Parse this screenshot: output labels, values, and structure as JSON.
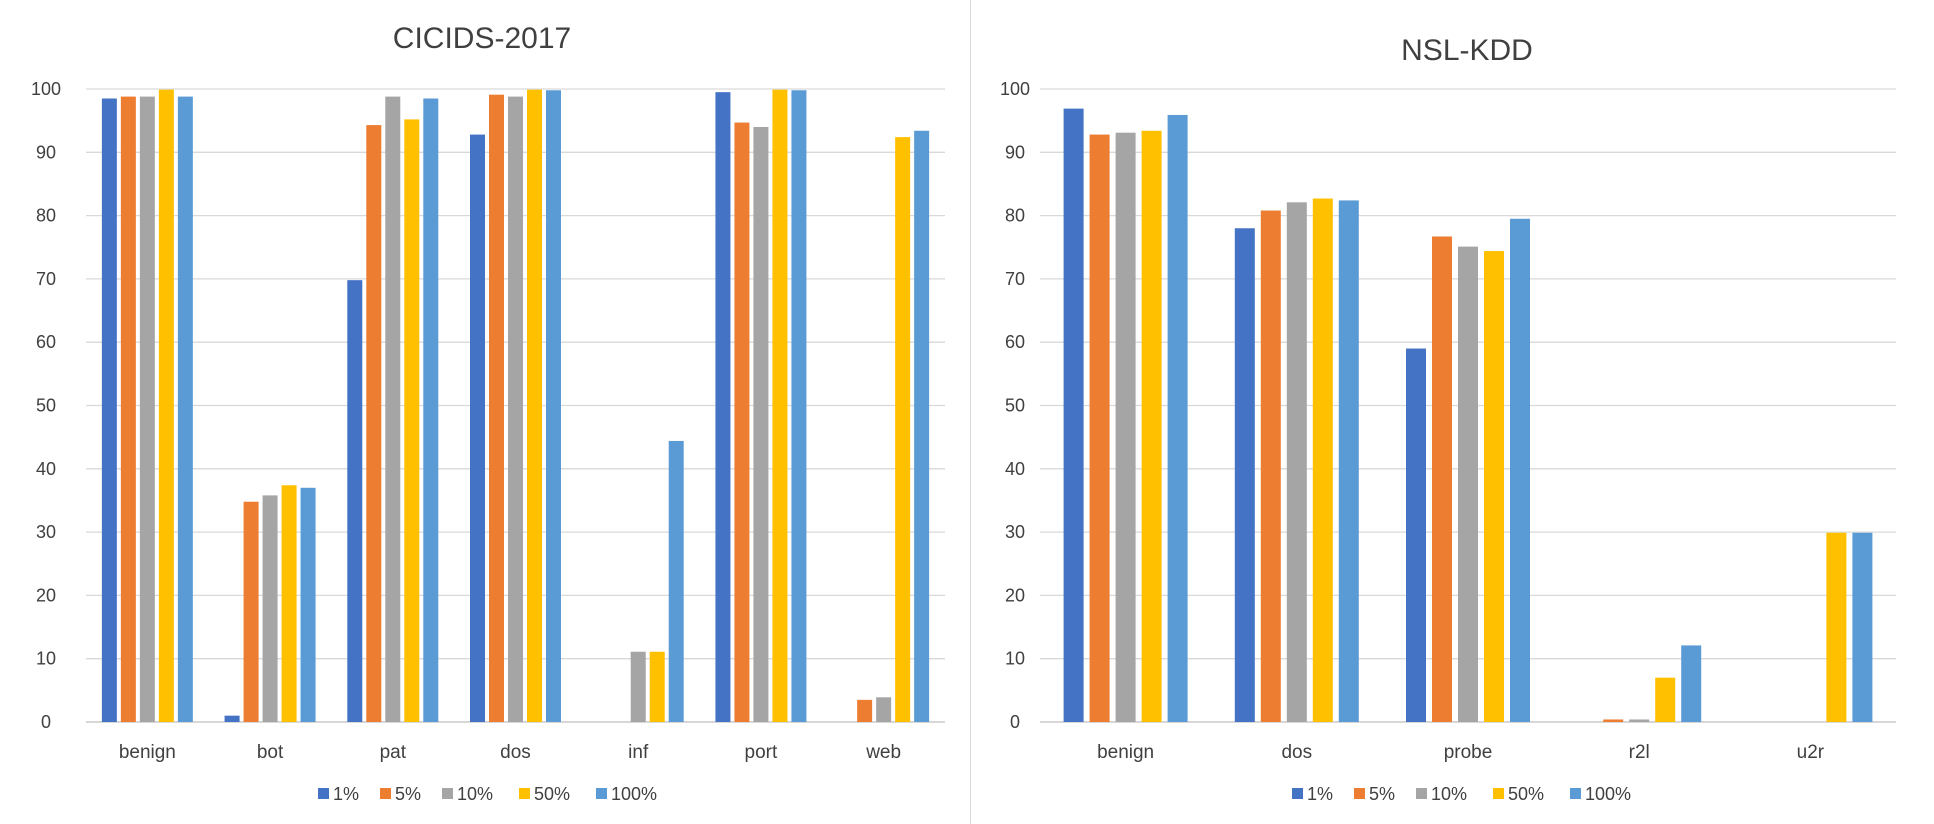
{
  "series_colors": [
    "#4472C4",
    "#ED7D31",
    "#A5A5A5",
    "#FFC000",
    "#5B9BD5"
  ],
  "chart_data": [
    {
      "type": "bar",
      "title": "CICIDS-2017",
      "xlabel": "",
      "ylabel": "",
      "ylim": [
        0,
        100
      ],
      "yticks": [
        "0",
        "10",
        "20",
        "30",
        "40",
        "50",
        "60",
        "70",
        "80",
        "90",
        "100"
      ],
      "grid": true,
      "legend_position": "bottom",
      "categories": [
        "benign",
        "bot",
        "pat",
        "dos",
        "inf",
        "port",
        "web"
      ],
      "series": [
        {
          "name": "1%",
          "values": [
            98.5,
            1.0,
            69.8,
            92.8,
            0,
            99.5,
            0
          ]
        },
        {
          "name": "5%",
          "values": [
            98.8,
            34.8,
            94.3,
            99.1,
            0,
            94.7,
            3.5
          ]
        },
        {
          "name": "10%",
          "values": [
            98.8,
            35.8,
            98.8,
            98.8,
            11.1,
            94.0,
            3.9
          ]
        },
        {
          "name": "50%",
          "values": [
            99.9,
            37.4,
            95.2,
            99.9,
            11.1,
            99.9,
            92.4
          ]
        },
        {
          "name": "100%",
          "values": [
            98.8,
            37.0,
            98.5,
            99.8,
            44.4,
            99.8,
            93.4
          ]
        }
      ]
    },
    {
      "type": "bar",
      "title": "NSL-KDD",
      "xlabel": "",
      "ylabel": "",
      "ylim": [
        0,
        100
      ],
      "yticks": [
        "0",
        "10",
        "20",
        "30",
        "40",
        "50",
        "60",
        "70",
        "80",
        "90",
        "100"
      ],
      "grid": true,
      "legend_position": "bottom",
      "categories": [
        "benign",
        "dos",
        "probe",
        "r2l",
        "u2r"
      ],
      "series": [
        {
          "name": "1%",
          "values": [
            96.9,
            78.0,
            59.0,
            0,
            0
          ]
        },
        {
          "name": "5%",
          "values": [
            92.8,
            80.8,
            76.7,
            0.4,
            0
          ]
        },
        {
          "name": "10%",
          "values": [
            93.1,
            82.1,
            75.1,
            0.4,
            0
          ]
        },
        {
          "name": "50%",
          "values": [
            93.4,
            82.7,
            74.4,
            7.0,
            29.9
          ]
        },
        {
          "name": "100%",
          "values": [
            95.9,
            82.4,
            79.5,
            12.1,
            29.9
          ]
        }
      ]
    }
  ]
}
